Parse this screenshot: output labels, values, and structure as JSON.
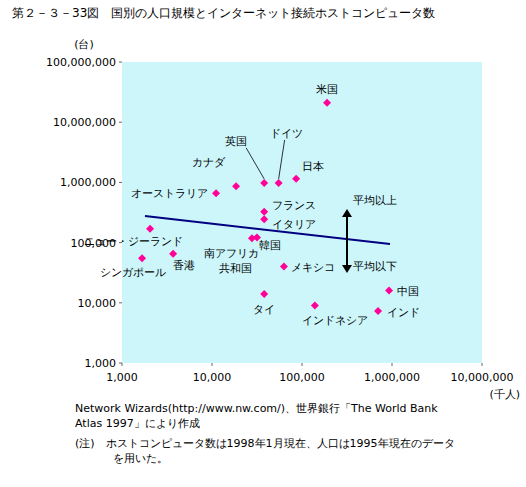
{
  "chart_data": {
    "type": "scatter",
    "title": "第２－３－33図　国別の人口規模とインターネット接続ホストコンピュータ数",
    "x_label": "(千人)",
    "y_label": "(台)",
    "log": true,
    "grid": false,
    "xlim": [
      1000,
      10000000
    ],
    "ylim": [
      1000,
      100000000
    ],
    "xticks": [
      {
        "value": 1000,
        "label": "1,000"
      },
      {
        "value": 10000,
        "label": "10,000"
      },
      {
        "value": 100000,
        "label": "100,000"
      },
      {
        "value": 1000000,
        "label": "1,000,000"
      },
      {
        "value": 10000000,
        "label": "10,000,000"
      }
    ],
    "yticks": [
      {
        "value": 1000,
        "label": "1,000"
      },
      {
        "value": 10000,
        "label": "10,000"
      },
      {
        "value": 100000,
        "label": "100,000"
      },
      {
        "value": 1000000,
        "label": "1,000,000"
      },
      {
        "value": 10000000,
        "label": "10,000,000"
      },
      {
        "value": 100000000,
        "label": "100,000,000"
      }
    ],
    "series": [
      {
        "type": "scatter",
        "color": "#ff0099",
        "marker": "diamond",
        "x": [
          190000,
          38000,
          55000,
          86000,
          18500,
          11100,
          38000,
          38000,
          2050,
          31600,
          27800,
          1670,
          3700,
          63000,
          38000,
          139000,
          927000,
          700000
        ],
        "values": [
          21000000,
          980000,
          980000,
          1150000,
          860000,
          660000,
          325000,
          245000,
          170000,
          122000,
          118000,
          55000,
          65000,
          40000,
          14000,
          9000,
          16000,
          7300
        ],
        "point_labels": [
          "米国",
          "英国",
          "ドイツ",
          "日本",
          "カナダ",
          "オーストラリア",
          "フランス",
          "イタリア",
          "ニュー・ジーランド",
          "韓国",
          "南アフリカ\n共和国",
          "シンガポール",
          "香港",
          "メキシコ",
          "タイ",
          "インドネシア",
          "中国",
          "インド"
        ]
      },
      {
        "type": "line",
        "color": "#000080",
        "line_style": "solid",
        "x": [
          1800,
          950000
        ],
        "values": [
          277000,
          95000
        ]
      }
    ],
    "annotations": [
      "平均以上",
      "平均以下"
    ],
    "notes": [
      "Network Wizards(http://www.nw.com/)、世界銀行「The World Bank",
      "Atlas 1997」により作成",
      "(注)　ホストコンピュータ数は1998年1月現在、人口は1995年現在のデータ",
      "を用いた。"
    ]
  }
}
